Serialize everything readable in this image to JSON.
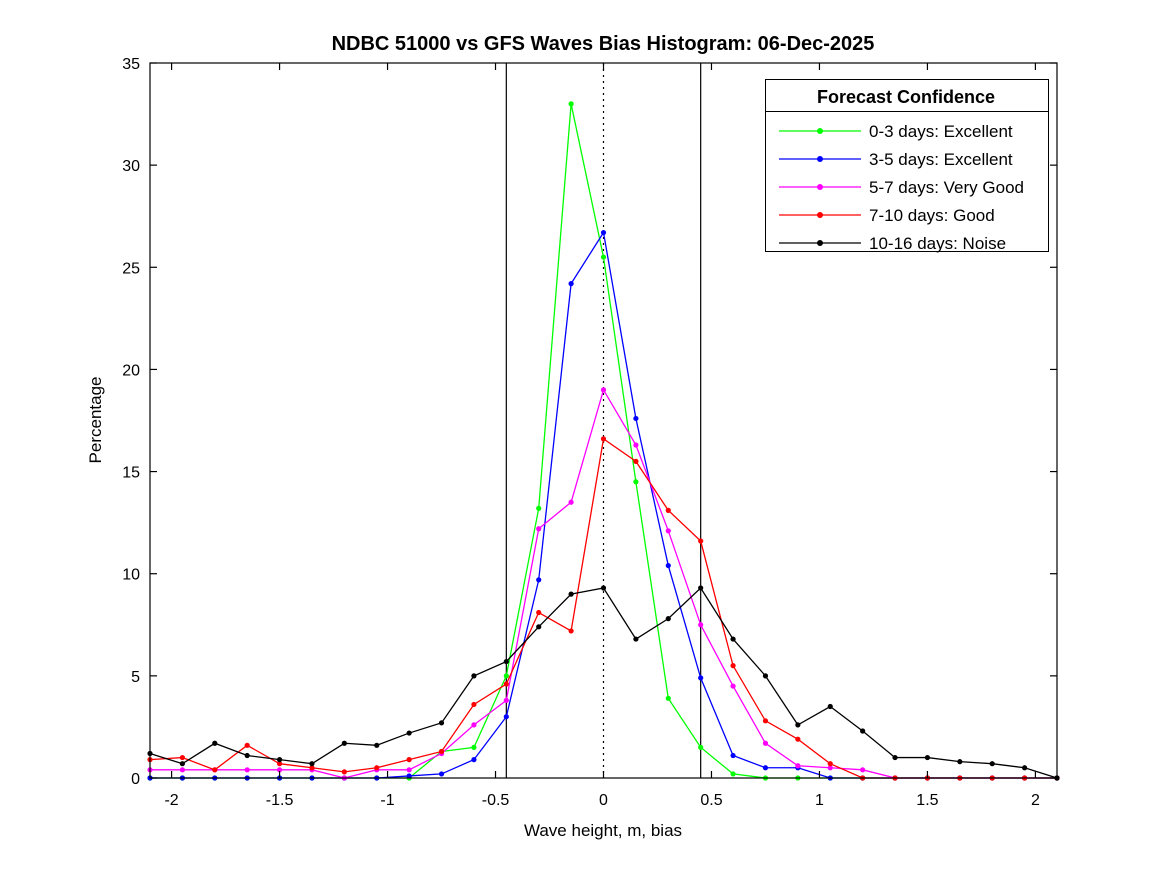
{
  "figure": {
    "background": "#ffffff",
    "axis_color": "#000000"
  },
  "chart_data": {
    "type": "line",
    "title": "NDBC 51000 vs GFS Waves Bias Histogram: 06-Dec-2025",
    "xlabel": "Wave height, m, bias",
    "ylabel": "Percentage",
    "xlim": [
      -2.1,
      2.1
    ],
    "ylim": [
      0,
      35
    ],
    "x_ticks": [
      -2,
      -1.5,
      -1,
      -0.5,
      0,
      0.5,
      1,
      1.5,
      2
    ],
    "y_ticks": [
      0,
      5,
      10,
      15,
      20,
      25,
      30,
      35
    ],
    "grid": false,
    "reference_lines": {
      "dotted_vertical_x": 0,
      "solid_vertical_x": [
        -0.45,
        0.45
      ]
    },
    "x": [
      -2.1,
      -1.95,
      -1.8,
      -1.65,
      -1.5,
      -1.35,
      -1.2,
      -1.05,
      -0.9,
      -0.75,
      -0.6,
      -0.45,
      -0.3,
      -0.15,
      0,
      0.15,
      0.3,
      0.45,
      0.6,
      0.75,
      0.9,
      1.05,
      1.2,
      1.35,
      1.5,
      1.65,
      1.8,
      1.95,
      2.1
    ],
    "series": [
      {
        "name": "0-3 days: Excellent",
        "color": "#00ff00",
        "values": [
          0,
          0,
          0,
          0,
          0,
          0,
          0,
          0,
          0,
          1.3,
          1.5,
          5.0,
          13.2,
          33.0,
          25.5,
          14.5,
          3.9,
          1.5,
          0.2,
          0,
          0,
          0,
          0,
          0,
          0,
          0,
          0,
          0,
          0
        ]
      },
      {
        "name": "3-5 days: Excellent",
        "color": "#0000ff",
        "values": [
          0,
          0,
          0,
          0,
          0,
          0,
          0,
          0,
          0.1,
          0.2,
          0.9,
          3.0,
          9.7,
          24.2,
          26.7,
          17.6,
          10.4,
          4.9,
          1.1,
          0.5,
          0.5,
          0,
          0,
          0,
          0,
          0,
          0,
          0,
          0
        ]
      },
      {
        "name": "5-7 days: Very Good",
        "color": "#ff00ff",
        "values": [
          0.4,
          0.4,
          0.4,
          0.4,
          0.4,
          0.4,
          0,
          0.4,
          0.4,
          1.2,
          2.6,
          3.8,
          12.2,
          13.5,
          19.0,
          16.3,
          12.1,
          7.5,
          4.5,
          1.7,
          0.6,
          0.5,
          0.4,
          0,
          0,
          0,
          0,
          0,
          0
        ]
      },
      {
        "name": "7-10 days: Good",
        "color": "#ff0000",
        "values": [
          0.9,
          1.0,
          0.4,
          1.6,
          0.7,
          0.5,
          0.3,
          0.5,
          0.9,
          1.3,
          3.6,
          4.6,
          8.1,
          7.2,
          16.6,
          15.5,
          13.1,
          11.6,
          5.5,
          2.8,
          1.9,
          0.7,
          0,
          0,
          0,
          0,
          0,
          0,
          0
        ]
      },
      {
        "name": "10-16 days: Noise",
        "color": "#000000",
        "values": [
          1.2,
          0.7,
          1.7,
          1.1,
          0.9,
          0.7,
          1.7,
          1.6,
          2.2,
          2.7,
          5.0,
          5.7,
          7.4,
          9.0,
          9.3,
          6.8,
          7.8,
          9.3,
          6.8,
          5.0,
          2.6,
          3.5,
          2.3,
          1.0,
          1.0,
          0.8,
          0.7,
          0.5,
          0
        ]
      }
    ],
    "legend": {
      "title": "Forecast Confidence",
      "position": "top-right"
    }
  }
}
